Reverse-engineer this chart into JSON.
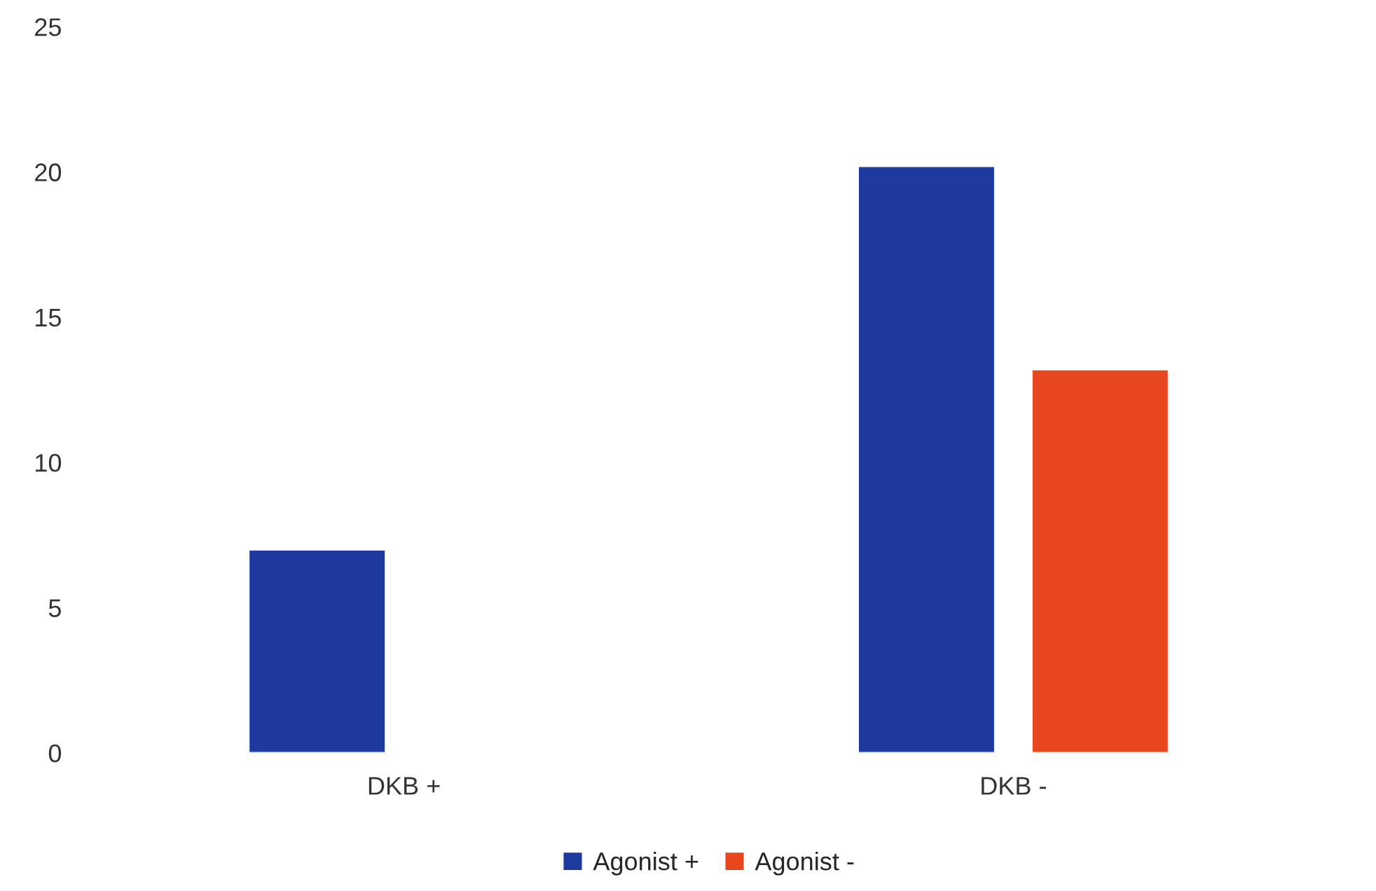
{
  "chart_data": {
    "type": "bar",
    "categories": [
      "DKB +",
      "DKB -"
    ],
    "series": [
      {
        "name": "Agonist +",
        "color": "#1e3a9e",
        "values": [
          7,
          20.2
        ]
      },
      {
        "name": "Agonist -",
        "color": "#e8461e",
        "values": [
          null,
          13.2
        ]
      }
    ],
    "ylim": [
      0,
      25
    ],
    "yticks": [
      0,
      5,
      10,
      15,
      20,
      25
    ],
    "grid": false,
    "legend": "bottom"
  }
}
